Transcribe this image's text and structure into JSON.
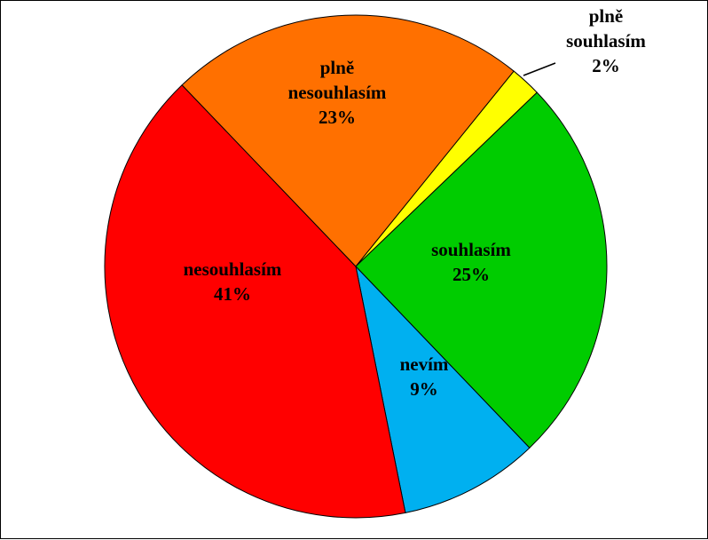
{
  "chart_data": {
    "type": "pie",
    "slices": [
      {
        "label": [
          "plně",
          "souhlasím"
        ],
        "percent_label": "2%",
        "value": 2,
        "color": "#ffff00"
      },
      {
        "label": [
          "souhlasím"
        ],
        "percent_label": "25%",
        "value": 25,
        "color": "#00cc00"
      },
      {
        "label": [
          "nevím"
        ],
        "percent_label": "9%",
        "value": 9,
        "color": "#00b0f0"
      },
      {
        "label": [
          "nesouhlasím"
        ],
        "percent_label": "41%",
        "value": 41,
        "color": "#ff0000"
      },
      {
        "label": [
          "plně",
          "nesouhlasím"
        ],
        "percent_label": "23%",
        "value": 23,
        "color": "#ff7000"
      }
    ],
    "title": "",
    "legend": "none",
    "direction": "clockwise"
  }
}
